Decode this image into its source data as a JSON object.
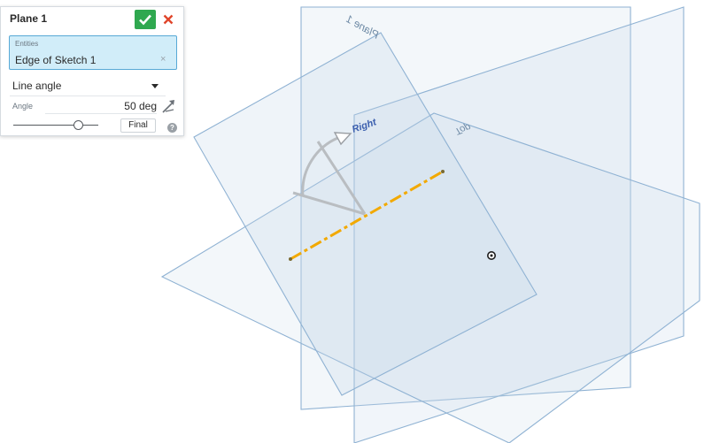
{
  "dialog": {
    "title": "Plane 1",
    "entities_label": "Entities",
    "entities_value": "Edge of Sketch 1",
    "entities_clear": "×",
    "type_value": "Line angle",
    "angle_label": "Angle",
    "angle_value": "50 deg",
    "final_label": "Final",
    "help_glyph": "?",
    "icons": {
      "accept": "check-icon",
      "cancel": "close-icon",
      "dropdown": "chevron-down-icon",
      "flip": "flip-direction-icon",
      "help": "help-icon"
    }
  },
  "viewport": {
    "plane_labels": {
      "preview": "Plane 1",
      "right": "Right",
      "top": "Top"
    }
  },
  "colors": {
    "plane_fill": "#c7d9ea",
    "plane_edge": "#8fb2d3",
    "sketch_line": "#f2a900",
    "accept": "#2fa84f",
    "cancel": "#e0452b",
    "entities_highlight": "#d1edf9"
  }
}
